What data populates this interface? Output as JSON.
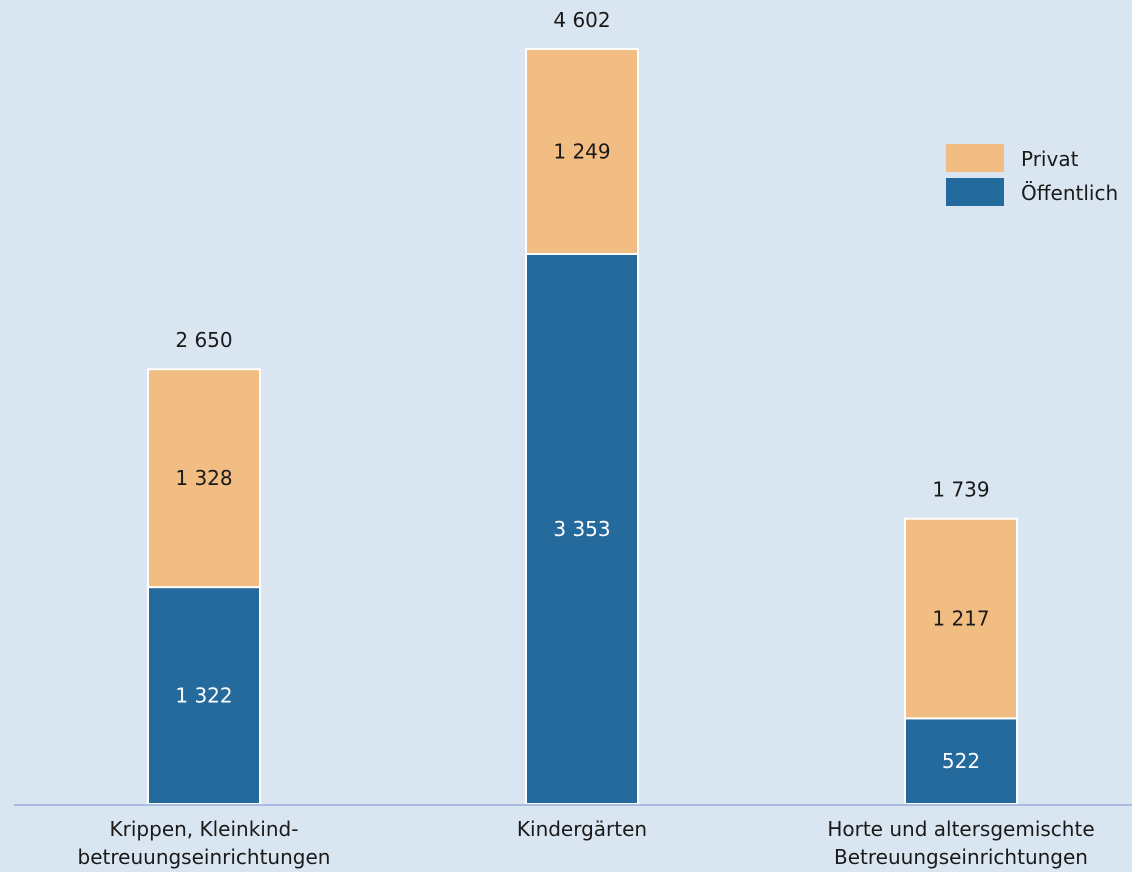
{
  "chart_data": {
    "type": "bar",
    "stacked": true,
    "categories": [
      [
        "Krippen, Kleinkind-",
        "betreuungseinrichtungen"
      ],
      [
        "Kindergärten"
      ],
      [
        "Horte und altersgemischte",
        "Betreuungseinrichtungen"
      ]
    ],
    "series": [
      {
        "name": "Öffentlich",
        "values": [
          1322,
          3353,
          522
        ],
        "labels": [
          "1 322",
          "3 353",
          "522"
        ],
        "color": "#256a9c",
        "label_color": "#ffffff"
      },
      {
        "name": "Privat",
        "values": [
          1328,
          1249,
          1217
        ],
        "labels": [
          "1 328",
          "1 249",
          "1 217"
        ],
        "color": "#f2bd83",
        "label_color": "#1a1a1a"
      }
    ],
    "totals": [
      2650,
      4602,
      1739
    ],
    "total_labels": [
      "2 650",
      "4 602",
      "1 739"
    ],
    "ylim": [
      0,
      4602
    ],
    "grid": false,
    "legend": {
      "position": "top-right",
      "items": [
        {
          "label": "Privat",
          "color": "#f2bd83"
        },
        {
          "label": "Öffentlich",
          "color": "#256a9c"
        }
      ]
    },
    "axis_color": "#a9bde0"
  }
}
